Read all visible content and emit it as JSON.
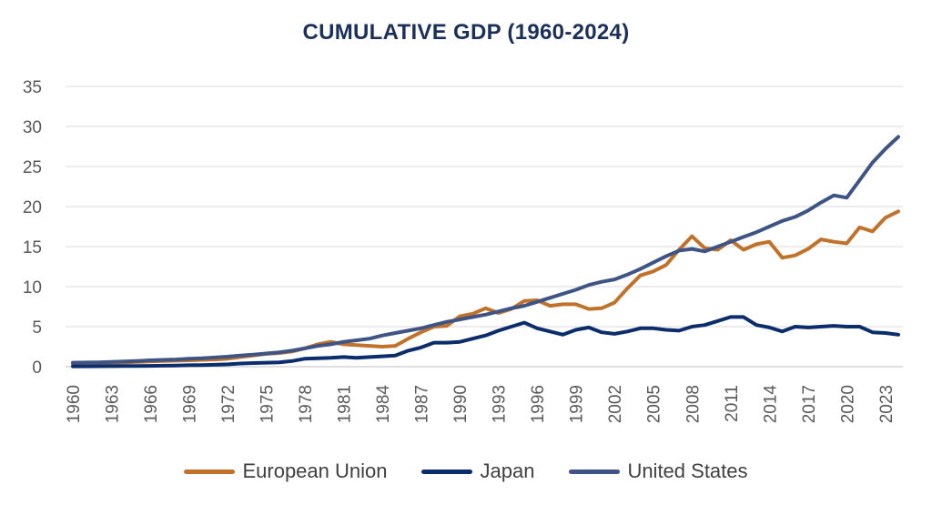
{
  "chart_data": {
    "type": "line",
    "title": "CUMULATIVE GDP (1960-2024)",
    "xlabel": "",
    "ylabel": "",
    "ylim": [
      0,
      35
    ],
    "yticks": [
      0,
      5,
      10,
      15,
      20,
      25,
      30,
      35
    ],
    "xtick_labels": [
      "1960",
      "1963",
      "1966",
      "1969",
      "1972",
      "1975",
      "1978",
      "1981",
      "1984",
      "1987",
      "1990",
      "1993",
      "1996",
      "1999",
      "2002",
      "2005",
      "2008",
      "2011",
      "2014",
      "2017",
      "2020",
      "2023"
    ],
    "grid": true,
    "legend_position": "bottom",
    "x": [
      1960,
      1961,
      1962,
      1963,
      1964,
      1965,
      1966,
      1967,
      1968,
      1969,
      1970,
      1971,
      1972,
      1973,
      1974,
      1975,
      1976,
      1977,
      1978,
      1979,
      1980,
      1981,
      1982,
      1983,
      1984,
      1985,
      1986,
      1987,
      1988,
      1989,
      1990,
      1991,
      1992,
      1993,
      1994,
      1995,
      1996,
      1997,
      1998,
      1999,
      2000,
      2001,
      2002,
      2003,
      2004,
      2005,
      2006,
      2007,
      2008,
      2009,
      2010,
      2011,
      2012,
      2013,
      2014,
      2015,
      2016,
      2017,
      2018,
      2019,
      2020,
      2021,
      2022,
      2023,
      2024
    ],
    "series": [
      {
        "name": "European Union",
        "color": "#c0722b",
        "values": [
          0.4,
          0.4,
          0.45,
          0.5,
          0.55,
          0.6,
          0.65,
          0.7,
          0.75,
          0.8,
          0.85,
          0.9,
          1.0,
          1.2,
          1.4,
          1.6,
          1.7,
          1.9,
          2.3,
          2.8,
          3.1,
          2.8,
          2.7,
          2.6,
          2.5,
          2.6,
          3.5,
          4.3,
          5.0,
          5.1,
          6.3,
          6.6,
          7.3,
          6.7,
          7.2,
          8.2,
          8.3,
          7.6,
          7.8,
          7.8,
          7.2,
          7.3,
          8.0,
          9.8,
          11.4,
          11.9,
          12.7,
          14.6,
          16.3,
          14.8,
          14.6,
          15.8,
          14.6,
          15.3,
          15.6,
          13.6,
          13.9,
          14.7,
          15.9,
          15.6,
          15.4,
          17.4,
          16.9,
          18.6,
          19.4
        ]
      },
      {
        "name": "Japan",
        "color": "#0b2d6b",
        "values": [
          0.05,
          0.05,
          0.06,
          0.07,
          0.08,
          0.09,
          0.1,
          0.12,
          0.15,
          0.18,
          0.21,
          0.24,
          0.3,
          0.4,
          0.45,
          0.5,
          0.55,
          0.7,
          1.0,
          1.05,
          1.1,
          1.2,
          1.1,
          1.2,
          1.3,
          1.4,
          2.0,
          2.4,
          3.0,
          3.0,
          3.1,
          3.5,
          3.9,
          4.5,
          5.0,
          5.5,
          4.8,
          4.4,
          4.0,
          4.6,
          4.9,
          4.3,
          4.1,
          4.4,
          4.8,
          4.8,
          4.6,
          4.5,
          5.0,
          5.2,
          5.7,
          6.2,
          6.2,
          5.2,
          4.9,
          4.4,
          5.0,
          4.9,
          5.0,
          5.1,
          5.0,
          5.0,
          4.3,
          4.2,
          4.0
        ]
      },
      {
        "name": "United States",
        "color": "#3d5485",
        "values": [
          0.5,
          0.52,
          0.55,
          0.6,
          0.65,
          0.7,
          0.8,
          0.85,
          0.9,
          1.0,
          1.05,
          1.15,
          1.25,
          1.4,
          1.5,
          1.65,
          1.8,
          2.0,
          2.3,
          2.6,
          2.8,
          3.1,
          3.3,
          3.5,
          3.9,
          4.2,
          4.5,
          4.8,
          5.2,
          5.6,
          5.9,
          6.2,
          6.5,
          6.9,
          7.3,
          7.6,
          8.1,
          8.6,
          9.1,
          9.6,
          10.2,
          10.6,
          10.9,
          11.5,
          12.2,
          13.0,
          13.8,
          14.5,
          14.7,
          14.4,
          15.0,
          15.6,
          16.2,
          16.8,
          17.5,
          18.2,
          18.7,
          19.5,
          20.5,
          21.4,
          21.1,
          23.3,
          25.5,
          27.2,
          28.7
        ]
      }
    ]
  }
}
